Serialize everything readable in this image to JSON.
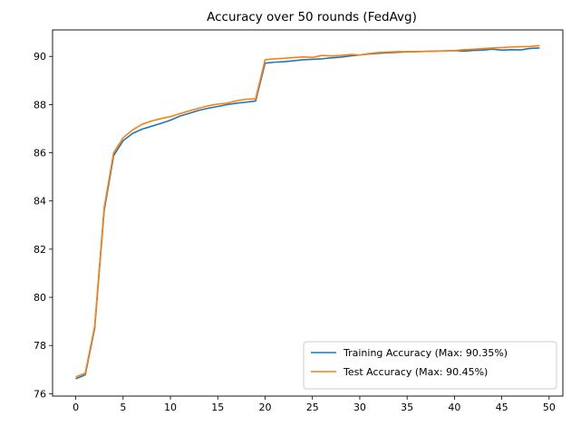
{
  "chart_data": {
    "type": "line",
    "title": "Accuracy over 50 rounds (FedAvg)",
    "xlabel": "",
    "ylabel": "",
    "xlim": [
      -2.45,
      51.45
    ],
    "ylim": [
      75.9,
      91.1
    ],
    "xticks": [
      0,
      5,
      10,
      15,
      20,
      25,
      30,
      35,
      40,
      45,
      50
    ],
    "yticks": [
      76,
      78,
      80,
      82,
      84,
      86,
      88,
      90
    ],
    "grid": false,
    "legend_position": "lower-right",
    "x": [
      0,
      1,
      2,
      3,
      4,
      5,
      6,
      7,
      8,
      9,
      10,
      11,
      12,
      13,
      14,
      15,
      16,
      17,
      18,
      19,
      20,
      21,
      22,
      23,
      24,
      25,
      26,
      27,
      28,
      29,
      30,
      31,
      32,
      33,
      34,
      35,
      36,
      37,
      38,
      39,
      40,
      41,
      42,
      43,
      44,
      45,
      46,
      47,
      48,
      49
    ],
    "series": [
      {
        "name": "Training Accuracy (Max: 90.35%)",
        "color": "#1f77b4",
        "values": [
          76.62,
          76.78,
          78.72,
          83.6,
          85.88,
          86.5,
          86.8,
          86.98,
          87.1,
          87.22,
          87.35,
          87.52,
          87.64,
          87.76,
          87.85,
          87.92,
          88.0,
          88.06,
          88.1,
          88.15,
          89.72,
          89.76,
          89.78,
          89.82,
          89.86,
          89.88,
          89.9,
          89.94,
          89.97,
          90.02,
          90.06,
          90.1,
          90.13,
          90.15,
          90.17,
          90.19,
          90.2,
          90.21,
          90.22,
          90.23,
          90.24,
          90.22,
          90.25,
          90.26,
          90.3,
          90.26,
          90.28,
          90.27,
          90.33,
          90.35
        ]
      },
      {
        "name": "Test Accuracy (Max: 90.45%)",
        "color": "#ff7f0e",
        "values": [
          76.7,
          76.85,
          78.8,
          83.72,
          86.0,
          86.62,
          86.95,
          87.18,
          87.32,
          87.42,
          87.5,
          87.62,
          87.74,
          87.85,
          87.95,
          88.02,
          88.06,
          88.16,
          88.22,
          88.24,
          89.86,
          89.9,
          89.92,
          89.95,
          89.98,
          89.96,
          90.04,
          90.02,
          90.04,
          90.08,
          90.06,
          90.12,
          90.16,
          90.18,
          90.2,
          90.2,
          90.2,
          90.21,
          90.22,
          90.23,
          90.24,
          90.28,
          90.3,
          90.32,
          90.35,
          90.37,
          90.39,
          90.4,
          90.41,
          90.45
        ]
      }
    ]
  }
}
